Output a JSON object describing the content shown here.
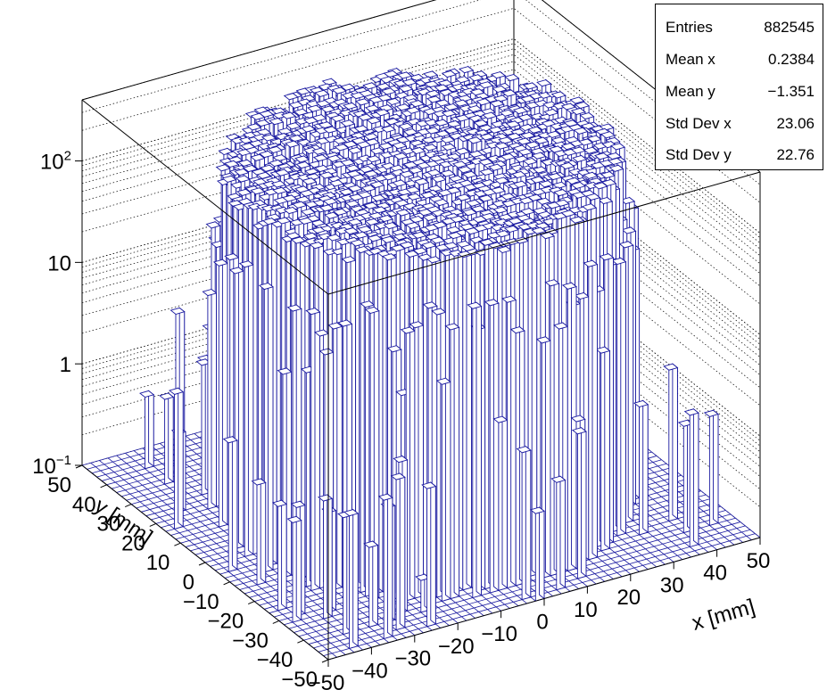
{
  "stats": {
    "rows": [
      {
        "label": "Entries",
        "value": "882545"
      },
      {
        "label": "Mean x",
        "value": "0.2384"
      },
      {
        "label": "Mean y",
        "value": "−1.351"
      },
      {
        "label": "Std Dev x",
        "value": "23.06"
      },
      {
        "label": "Std Dev y",
        "value": "22.76"
      }
    ]
  },
  "chart_data": {
    "type": "lego",
    "title": "",
    "xlabel": "x [mm]",
    "ylabel": "y [mm]",
    "zlabel": "",
    "xlim": [
      -50,
      50
    ],
    "ylim": [
      -50,
      50
    ],
    "zscale": "log",
    "zlim": [
      0.1,
      400
    ],
    "x_ticks": [
      "−50",
      "−40",
      "−30",
      "−20",
      "−10",
      "0",
      "10",
      "20",
      "30",
      "40",
      "50"
    ],
    "y_ticks": [
      "−50",
      "−40",
      "−30",
      "−20",
      "−10",
      "0",
      "10",
      "20",
      "30",
      "40",
      "50"
    ],
    "z_ticks": [
      {
        "value": 0.1,
        "base": "10",
        "exp": "−1"
      },
      {
        "value": 1,
        "base": "1",
        "exp": ""
      },
      {
        "value": 10,
        "base": "10",
        "exp": ""
      },
      {
        "value": 100,
        "base": "10",
        "exp": "2"
      }
    ],
    "plateau_radius_mm": 40,
    "plateau_counts": 220,
    "total_entries": 882545,
    "color": "#1a1aa0",
    "fill": "#ffffff",
    "grid": true
  }
}
